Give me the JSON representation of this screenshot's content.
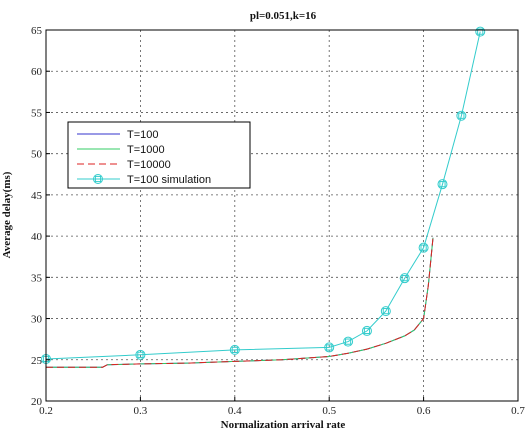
{
  "chart_data": {
    "type": "line",
    "title": "pl=0.051,k=16",
    "xlabel": "Normalization arrival rate",
    "ylabel": "Average delay(ms)",
    "xlim": [
      0.2,
      0.7
    ],
    "ylim": [
      20,
      65
    ],
    "xticks": [
      "0.2",
      "0.3",
      "0.4",
      "0.5",
      "0.6",
      "0.7"
    ],
    "yticks": [
      "20",
      "25",
      "30",
      "35",
      "40",
      "45",
      "50",
      "55",
      "60",
      "65"
    ],
    "grid": true,
    "legend_position": "middle-left",
    "series": [
      {
        "name": "T=100",
        "color": "#3333cc",
        "dash": "solid",
        "marker": "none",
        "x": [
          0.2,
          0.26,
          0.265,
          0.3,
          0.35,
          0.4,
          0.45,
          0.5,
          0.52,
          0.54,
          0.56,
          0.58,
          0.59,
          0.6,
          0.605,
          0.61
        ],
        "y": [
          24.1,
          24.1,
          24.4,
          24.5,
          24.6,
          24.8,
          25.0,
          25.4,
          25.8,
          26.3,
          27.0,
          27.9,
          28.6,
          30.0,
          34.0,
          39.8
        ]
      },
      {
        "name": "T=1000",
        "color": "#33cc66",
        "dash": "solid",
        "marker": "none",
        "x": [
          0.2,
          0.26,
          0.265,
          0.3,
          0.35,
          0.4,
          0.45,
          0.5,
          0.52,
          0.54,
          0.56,
          0.58,
          0.59,
          0.6,
          0.605,
          0.61
        ],
        "y": [
          24.1,
          24.1,
          24.4,
          24.5,
          24.6,
          24.8,
          25.0,
          25.4,
          25.8,
          26.3,
          27.0,
          27.9,
          28.6,
          30.0,
          34.0,
          39.8
        ]
      },
      {
        "name": "T=10000",
        "color": "#dd2222",
        "dash": "dashed",
        "marker": "none",
        "x": [
          0.2,
          0.26,
          0.265,
          0.3,
          0.35,
          0.4,
          0.45,
          0.5,
          0.52,
          0.54,
          0.56,
          0.58,
          0.59,
          0.6,
          0.605,
          0.61
        ],
        "y": [
          24.1,
          24.1,
          24.4,
          24.5,
          24.6,
          24.8,
          25.0,
          25.4,
          25.8,
          26.3,
          27.0,
          27.9,
          28.6,
          30.0,
          34.0,
          39.8
        ]
      },
      {
        "name": "T=100 simulation",
        "color": "#33cccc",
        "dash": "solid",
        "marker": "circle-square",
        "x": [
          0.2,
          0.3,
          0.4,
          0.5,
          0.52,
          0.54,
          0.56,
          0.58,
          0.6,
          0.62,
          0.64,
          0.66
        ],
        "y": [
          25.1,
          25.6,
          26.2,
          26.5,
          27.2,
          28.5,
          30.9,
          34.9,
          38.6,
          46.3,
          54.6,
          64.8
        ]
      }
    ]
  }
}
